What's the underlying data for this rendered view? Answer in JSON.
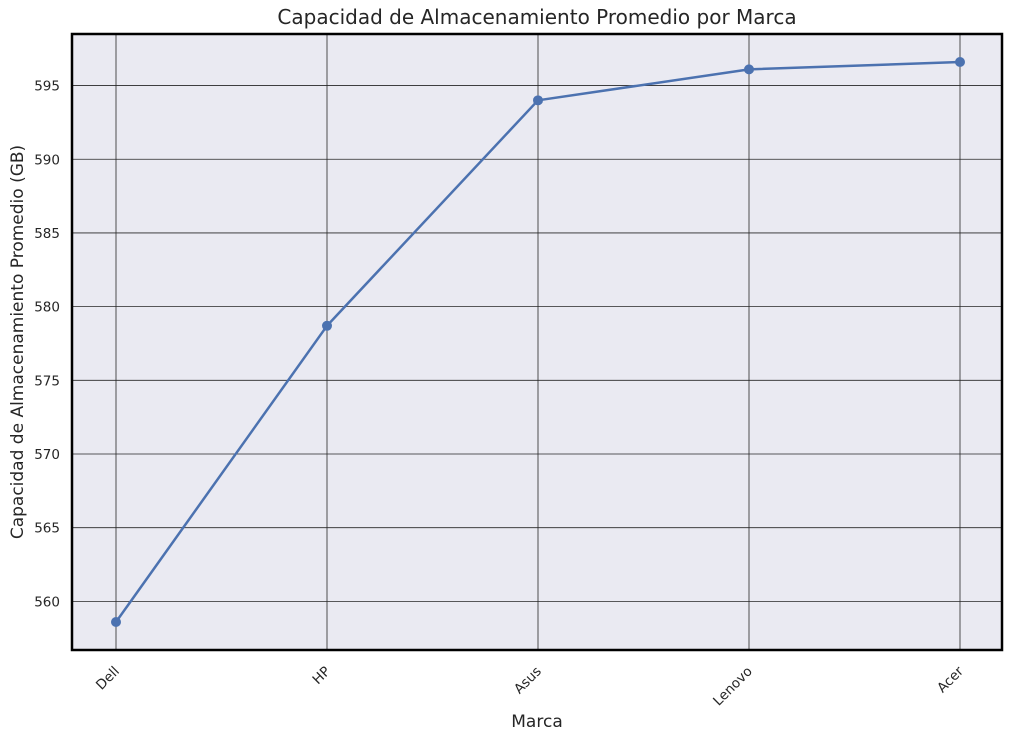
{
  "chart_data": {
    "type": "line",
    "title": "Capacidad de Almacenamiento Promedio por Marca",
    "xlabel": "Marca",
    "ylabel": "Capacidad de Almacenamiento Promedio (GB)",
    "categories": [
      "Dell",
      "HP",
      "Asus",
      "Lenovo",
      "Acer"
    ],
    "series": [
      {
        "values": [
          558.6,
          578.7,
          594.0,
          596.1,
          596.6
        ]
      }
    ],
    "ylim": [
      556.7,
      598.5
    ],
    "yticks": [
      "560",
      "565",
      "570",
      "575",
      "580",
      "585",
      "590",
      "595"
    ],
    "grid": true,
    "legend": "none",
    "colors": {
      "line": "#4c72b0",
      "plot_background": "#eaeaf2",
      "grid": "#262626",
      "frame": "#000000"
    }
  }
}
